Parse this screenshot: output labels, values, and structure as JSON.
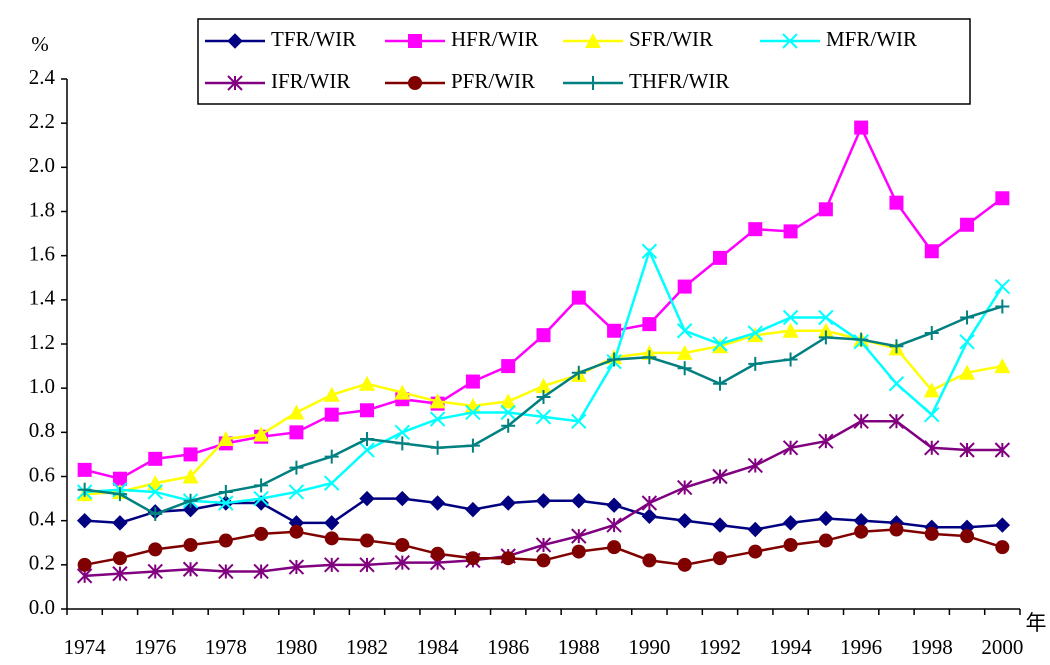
{
  "chart_data": {
    "type": "line",
    "y_label": "%",
    "x_label": "年",
    "categories": [
      "1974",
      null,
      "1976",
      null,
      "1978",
      null,
      "1980",
      null,
      "1982",
      null,
      "1984",
      null,
      "1986",
      null,
      "1988",
      null,
      "1990",
      null,
      "1992",
      null,
      "1994",
      null,
      "1996",
      null,
      "1998",
      null,
      "2000"
    ],
    "ylim": [
      0,
      2.4
    ],
    "yticks": [
      {
        "value": 0,
        "label": "0.0"
      },
      0.2,
      0.4,
      0.6,
      0.8,
      {
        "value": 1,
        "label": "1.0"
      },
      1.2,
      1.4,
      1.6,
      1.8,
      {
        "value": 2,
        "label": "2.0"
      },
      2.2,
      2.4
    ],
    "grid": false,
    "legend": "top",
    "series": [
      {
        "name": "TFR/WIR",
        "color": "#000080",
        "marker": "diamond",
        "values": [
          0.4,
          0.39,
          0.44,
          0.45,
          0.48,
          0.48,
          0.39,
          0.39,
          0.5,
          0.5,
          0.48,
          0.45,
          0.48,
          0.49,
          0.49,
          0.47,
          0.42,
          0.4,
          0.38,
          0.36,
          0.39,
          0.41,
          0.4,
          0.39,
          0.37,
          0.37,
          0.38
        ]
      },
      {
        "name": "HFR/WIR",
        "color": "#ff00ff",
        "marker": "square",
        "values": [
          0.63,
          0.59,
          0.68,
          0.7,
          0.75,
          0.78,
          0.8,
          0.88,
          0.9,
          0.95,
          0.93,
          1.03,
          1.1,
          1.24,
          1.41,
          1.26,
          1.29,
          1.46,
          1.59,
          1.72,
          1.71,
          1.81,
          2.18,
          1.84,
          1.62,
          1.74,
          1.86
        ]
      },
      {
        "name": "SFR/WIR",
        "color": "#ffff00",
        "marker": "triangle",
        "values": [
          0.52,
          0.53,
          0.57,
          0.6,
          0.77,
          0.79,
          0.89,
          0.97,
          1.02,
          0.98,
          0.94,
          0.92,
          0.94,
          1.01,
          1.06,
          1.14,
          1.16,
          1.16,
          1.19,
          1.24,
          1.26,
          1.26,
          1.22,
          1.18,
          0.99,
          1.07,
          1.1
        ]
      },
      {
        "name": "MFR/WIR",
        "color": "#00ffff",
        "marker": "x",
        "values": [
          0.53,
          0.54,
          0.53,
          0.49,
          0.48,
          0.5,
          0.53,
          0.57,
          0.72,
          0.8,
          0.86,
          0.89,
          0.89,
          0.87,
          0.85,
          1.12,
          1.62,
          1.26,
          1.2,
          1.25,
          1.32,
          1.32,
          1.21,
          1.02,
          0.88,
          1.21,
          1.46
        ]
      },
      {
        "name": "IFR/WIR",
        "color": "#800080",
        "marker": "asterisk",
        "values": [
          0.15,
          0.16,
          0.17,
          0.18,
          0.17,
          0.17,
          0.19,
          0.2,
          0.2,
          0.21,
          0.21,
          0.22,
          0.24,
          0.29,
          0.33,
          0.38,
          0.48,
          0.55,
          0.6,
          0.65,
          0.73,
          0.76,
          0.85,
          0.85,
          0.73,
          0.72,
          0.72
        ]
      },
      {
        "name": "PFR/WIR",
        "color": "#800000",
        "marker": "circle",
        "values": [
          0.2,
          0.23,
          0.27,
          0.29,
          0.31,
          0.34,
          0.35,
          0.32,
          0.31,
          0.29,
          0.25,
          0.23,
          0.23,
          0.22,
          0.26,
          0.28,
          0.22,
          0.2,
          0.23,
          0.26,
          0.29,
          0.31,
          0.35,
          0.36,
          0.34,
          0.33,
          0.28
        ]
      },
      {
        "name": "THFR/WIR",
        "color": "#008080",
        "marker": "plus",
        "values": [
          0.54,
          0.52,
          0.43,
          0.49,
          0.53,
          0.56,
          0.64,
          0.69,
          0.77,
          0.75,
          0.73,
          0.74,
          0.83,
          0.96,
          1.07,
          1.13,
          1.14,
          1.09,
          1.02,
          1.11,
          1.13,
          1.23,
          1.22,
          1.19,
          1.25,
          1.32,
          1.37
        ]
      }
    ]
  }
}
